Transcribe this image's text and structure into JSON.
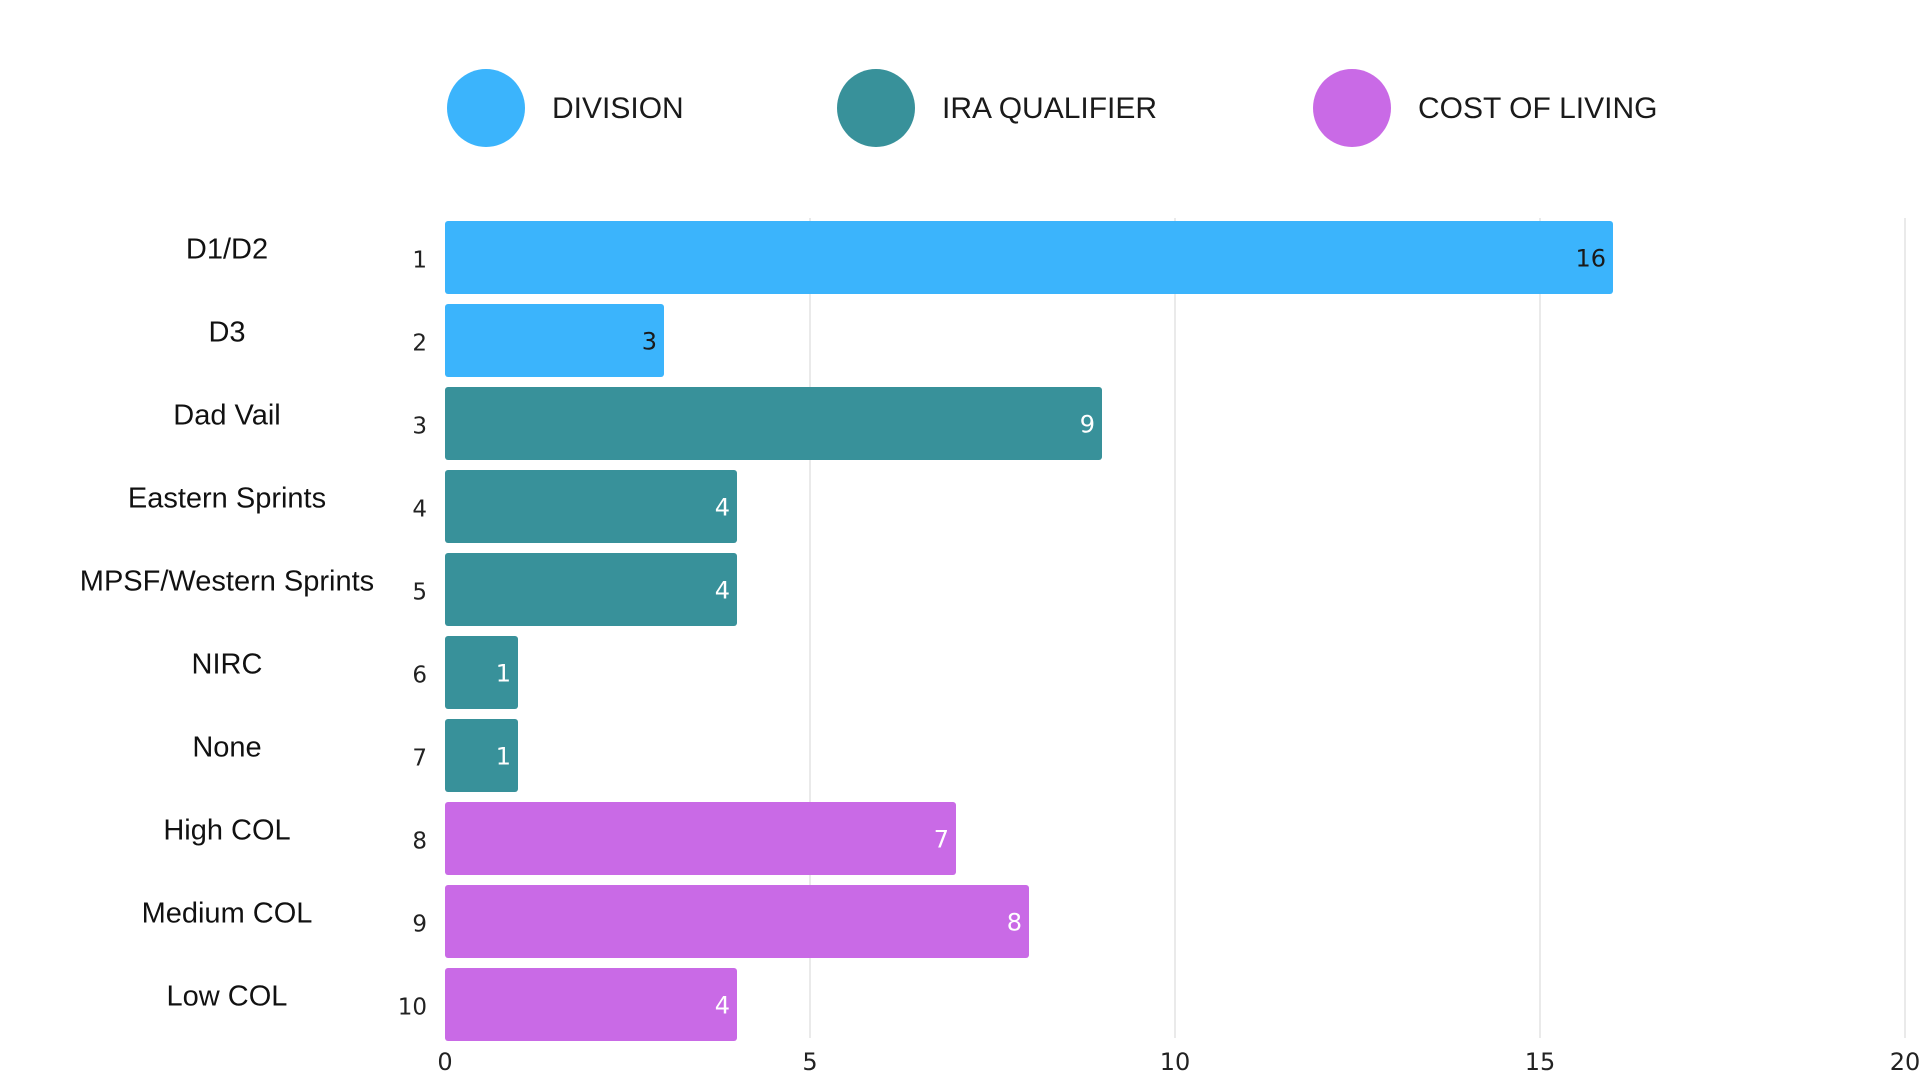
{
  "chart_data": {
    "type": "bar",
    "orientation": "horizontal",
    "title": "",
    "xlabel": "",
    "ylabel": "",
    "xlim": [
      0,
      20
    ],
    "ticks": [
      0,
      5,
      10,
      15,
      20
    ],
    "grid": true,
    "legend_position": "top",
    "groups": [
      {
        "name": "DIVISION",
        "color": "#3BB4FC"
      },
      {
        "name": "IRA QUALIFIER",
        "color": "#38919A"
      },
      {
        "name": "COST OF LIVING",
        "color": "#C96AE6"
      }
    ],
    "bars": [
      {
        "category": "D1/D2",
        "rank": "1",
        "value": 16,
        "group": "DIVISION",
        "label_color": "#1a1a1a"
      },
      {
        "category": "D3",
        "rank": "2",
        "value": 3,
        "group": "DIVISION",
        "label_color": "#1a1a1a"
      },
      {
        "category": "Dad Vail",
        "rank": "3",
        "value": 9,
        "group": "IRA QUALIFIER",
        "label_color": "#ffffff"
      },
      {
        "category": "Eastern Sprints",
        "rank": "4",
        "value": 4,
        "group": "IRA QUALIFIER",
        "label_color": "#ffffff"
      },
      {
        "category": "MPSF/Western Sprints",
        "rank": "5",
        "value": 4,
        "group": "IRA QUALIFIER",
        "label_color": "#ffffff"
      },
      {
        "category": "NIRC",
        "rank": "6",
        "value": 1,
        "group": "IRA QUALIFIER",
        "label_color": "#ffffff"
      },
      {
        "category": "None",
        "rank": "7",
        "value": 1,
        "group": "IRA QUALIFIER",
        "label_color": "#ffffff"
      },
      {
        "category": "High COL",
        "rank": "8",
        "value": 7,
        "group": "COST OF LIVING",
        "label_color": "#ffffff"
      },
      {
        "category": "Medium COL",
        "rank": "9",
        "value": 8,
        "group": "COST OF LIVING",
        "label_color": "#ffffff"
      },
      {
        "category": "Low COL",
        "rank": "10",
        "value": 4,
        "group": "COST OF LIVING",
        "label_color": "#ffffff"
      }
    ]
  }
}
